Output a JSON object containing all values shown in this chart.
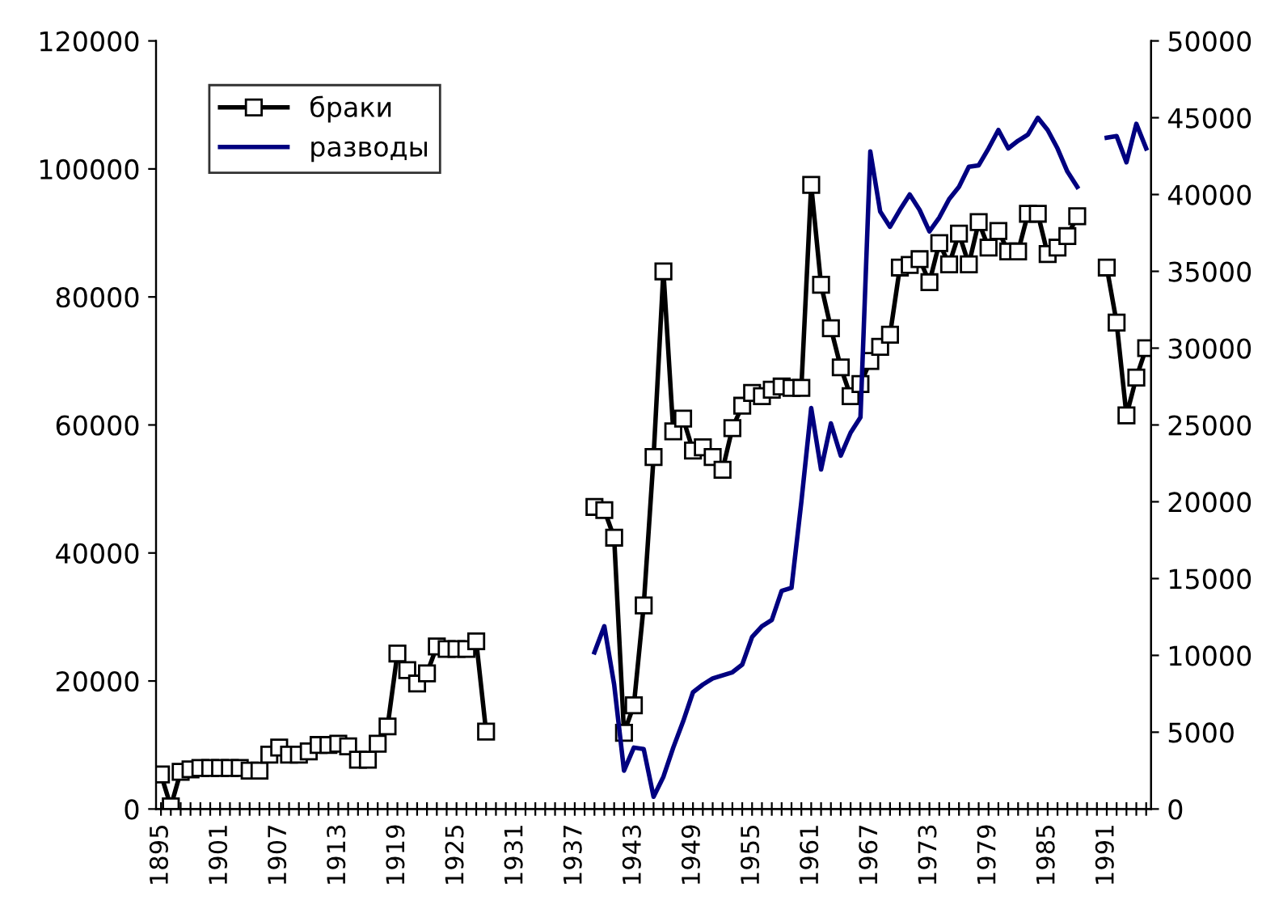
{
  "chart_data": {
    "type": "line",
    "categories": [
      "1895",
      null,
      null,
      null,
      null,
      null,
      "1901",
      null,
      null,
      null,
      null,
      null,
      "1907",
      null,
      null,
      null,
      null,
      null,
      "1913",
      null,
      null,
      null,
      null,
      null,
      "1919",
      null,
      null,
      null,
      null,
      null,
      "1925",
      null,
      null,
      null,
      null,
      null,
      "1931",
      null,
      null,
      null,
      null,
      null,
      "1937",
      null,
      null,
      null,
      null,
      null,
      "1943",
      null,
      null,
      null,
      null,
      null,
      "1949",
      null,
      null,
      null,
      null,
      null,
      "1955",
      null,
      null,
      null,
      null,
      null,
      "1961",
      null,
      null,
      null,
      null,
      null,
      "1967",
      null,
      null,
      null,
      null,
      null,
      "1973",
      null,
      null,
      null,
      null,
      null,
      "1979",
      null,
      null,
      null,
      null,
      null,
      "1985",
      null,
      null,
      null,
      null,
      null,
      "1991",
      null,
      null,
      null,
      null
    ],
    "series": [
      {
        "name": "браки",
        "color": "#000000",
        "marker": "square",
        "values": [
          5400,
          400,
          5800,
          6200,
          6400,
          6400,
          6400,
          6400,
          6400,
          6000,
          6000,
          8500,
          9600,
          8500,
          8500,
          9000,
          10000,
          10000,
          10200,
          9800,
          7700,
          7700,
          10200,
          12900,
          24300,
          21700,
          19600,
          21200,
          25400,
          25000,
          25000,
          25000,
          26200,
          12100,
          null,
          null,
          null,
          null,
          null,
          null,
          null,
          null,
          null,
          null,
          47200,
          46700,
          42400,
          11900,
          16200,
          31800,
          55000,
          84000,
          59000,
          61000,
          56000,
          56500,
          55000,
          53000,
          59500,
          63000,
          65000,
          64500,
          65500,
          66000,
          65800,
          65800,
          97500,
          81900,
          75100,
          69000,
          64500,
          66400,
          70000,
          72200,
          74100,
          84600,
          85000,
          85900,
          82300,
          88400,
          85100,
          89900,
          85100,
          91700,
          87700,
          90300,
          87100,
          87100,
          93000,
          93000,
          86700,
          87700,
          89500,
          92600,
          null,
          null,
          84600,
          76000,
          61500,
          67400,
          72000
        ]
      },
      {
        "name": "разводы",
        "color": "#000080",
        "marker": "none",
        "axis": "y2",
        "values": [
          null,
          null,
          null,
          null,
          null,
          null,
          null,
          null,
          null,
          null,
          null,
          null,
          null,
          null,
          null,
          null,
          null,
          null,
          null,
          null,
          null,
          null,
          null,
          null,
          null,
          null,
          null,
          null,
          null,
          null,
          null,
          null,
          null,
          null,
          null,
          null,
          null,
          null,
          null,
          null,
          null,
          null,
          null,
          null,
          10200,
          11900,
          8100,
          2500,
          4000,
          3900,
          800,
          2100,
          4000,
          5700,
          7600,
          8100,
          8500,
          8700,
          8900,
          9400,
          11200,
          11900,
          12300,
          14200,
          14400,
          20000,
          26100,
          22100,
          25100,
          23000,
          24500,
          25500,
          42800,
          38900,
          37900,
          39000,
          40000,
          39000,
          37600,
          38500,
          39700,
          40500,
          41800,
          41900,
          43000,
          44200,
          43000,
          43500,
          43900,
          45000,
          44200,
          43000,
          41500,
          40500,
          null,
          null,
          43700,
          43800,
          42100,
          44600,
          43000
        ]
      }
    ],
    "ylim": [
      0,
      120000
    ],
    "yticks": [
      0,
      20000,
      40000,
      60000,
      80000,
      100000,
      120000
    ],
    "y2lim": [
      0,
      50000
    ],
    "y2ticks": [
      0,
      5000,
      10000,
      15000,
      20000,
      25000,
      30000,
      35000,
      40000,
      45000,
      50000
    ],
    "legend": "top left"
  }
}
